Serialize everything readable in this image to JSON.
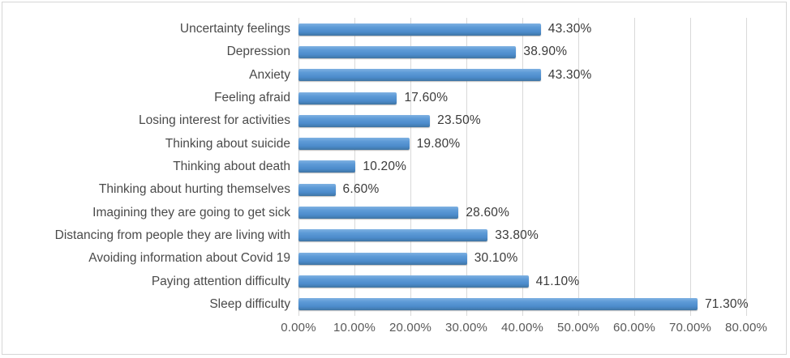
{
  "chart_data": {
    "type": "bar",
    "orientation": "horizontal",
    "title": "",
    "xlabel": "",
    "ylabel": "",
    "grid": true,
    "legend": false,
    "xlim": [
      0,
      80
    ],
    "x_ticks": [
      "0.00%",
      "10.00%",
      "20.00%",
      "30.00%",
      "40.00%",
      "50.00%",
      "60.00%",
      "70.00%",
      "80.00%"
    ],
    "categories": [
      "Uncertainty feelings",
      "Depression",
      "Anxiety",
      "Feeling afraid",
      "Losing interest for activities",
      "Thinking about suicide",
      "Thinking about death",
      "Thinking about hurting themselves",
      "Imagining they are going to get sick",
      "Distancing from people they are living with",
      "Avoiding information about Covid 19",
      "Paying attention difficulty",
      "Sleep difficulty"
    ],
    "values": [
      43.3,
      38.9,
      43.3,
      17.6,
      23.5,
      19.8,
      10.2,
      6.6,
      28.6,
      33.8,
      30.1,
      41.1,
      71.3
    ],
    "data_labels": [
      "43.30%",
      "38.90%",
      "43.30%",
      "17.60%",
      "23.50%",
      "19.80%",
      "10.20%",
      "6.60%",
      "28.60%",
      "33.80%",
      "30.10%",
      "41.10%",
      "71.30%"
    ],
    "bar_color": "#5b9bd5",
    "gridline_color": "#d9d9d9",
    "axis_text_color": "#595959",
    "category_text_color": "#4a4a4a",
    "data_label_color": "#3a3a3a",
    "background_color": "#ffffff",
    "border_color": "#d6d6d6"
  }
}
